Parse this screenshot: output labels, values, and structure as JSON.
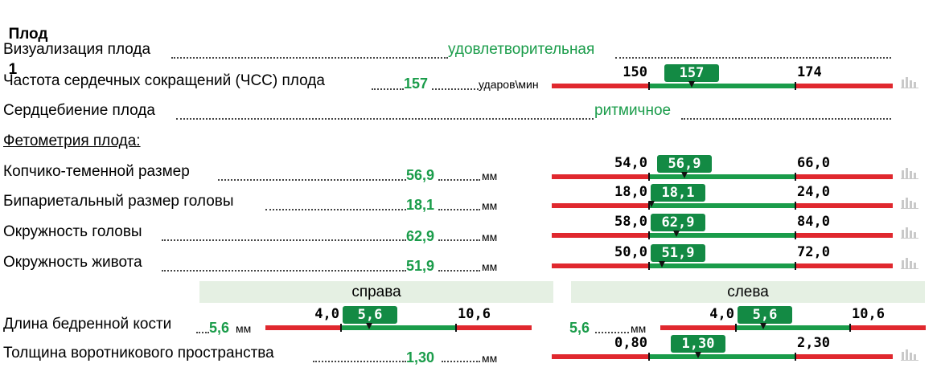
{
  "header": {
    "fetus_label": "Плод",
    "fetus_number": "1"
  },
  "rows": {
    "visualization": {
      "label": "Визуализация плода",
      "value": "удовлетворительная"
    },
    "heart_rate": {
      "label": "Частота сердечных сокращений (ЧСС) плода",
      "value": "157",
      "unit": "ударов\\мин",
      "scale": {
        "min_label": "150",
        "max_label": "174",
        "badge": "157",
        "min": 150,
        "max": 174,
        "value": 157
      }
    },
    "heartbeat": {
      "label": "Сердцебиение плода",
      "value": "ритмичное"
    },
    "fetometry": {
      "label": "Фетометрия плода:"
    },
    "crl": {
      "label": "Копчико-теменной размер",
      "value": "56,9",
      "unit": "мм",
      "scale": {
        "min_label": "54,0",
        "max_label": "66,0",
        "badge": "56,9",
        "min": 54.0,
        "max": 66.0,
        "value": 56.9
      }
    },
    "bpd": {
      "label": "Бипариетальный размер головы",
      "value": "18,1",
      "unit": "мм",
      "scale": {
        "min_label": "18,0",
        "max_label": "24,0",
        "badge": "18,1",
        "min": 18.0,
        "max": 24.0,
        "value": 18.1
      }
    },
    "hc": {
      "label": "Окружность головы",
      "value": "62,9",
      "unit": "мм",
      "scale": {
        "min_label": "58,0",
        "max_label": "84,0",
        "badge": "62,9",
        "min": 58.0,
        "max": 84.0,
        "value": 62.9
      }
    },
    "ac": {
      "label": "Окружность живота",
      "value": "51,9",
      "unit": "мм",
      "scale": {
        "min_label": "50,0",
        "max_label": "72,0",
        "badge": "51,9",
        "min": 50.0,
        "max": 72.0,
        "value": 51.9
      }
    },
    "sides": {
      "right": "справа",
      "left": "слева"
    },
    "femur": {
      "label": "Длина бедренной кости",
      "right": {
        "value": "5,6",
        "unit": "мм",
        "scale": {
          "min_label": "4,0",
          "max_label": "10,6",
          "badge": "5,6",
          "min": 4.0,
          "max": 10.6,
          "value": 5.6
        }
      },
      "left": {
        "value": "5,6",
        "unit": "мм",
        "scale": {
          "min_label": "4,0",
          "max_label": "10,6",
          "badge": "5,6",
          "min": 4.0,
          "max": 10.6,
          "value": 5.6
        }
      }
    },
    "nt": {
      "label": "Толщина воротникового пространства",
      "value": "1,30",
      "unit": "мм",
      "scale": {
        "min_label": "0,80",
        "max_label": "2,30",
        "badge": "1,30",
        "min": 0.8,
        "max": 2.3,
        "value": 1.3
      }
    }
  },
  "colors": {
    "normal": "#1a9c4a",
    "out_of_range": "#e0282e",
    "side_header_bg": "#e5f0e3"
  },
  "icons": {
    "chart": "bar-chart-icon"
  }
}
